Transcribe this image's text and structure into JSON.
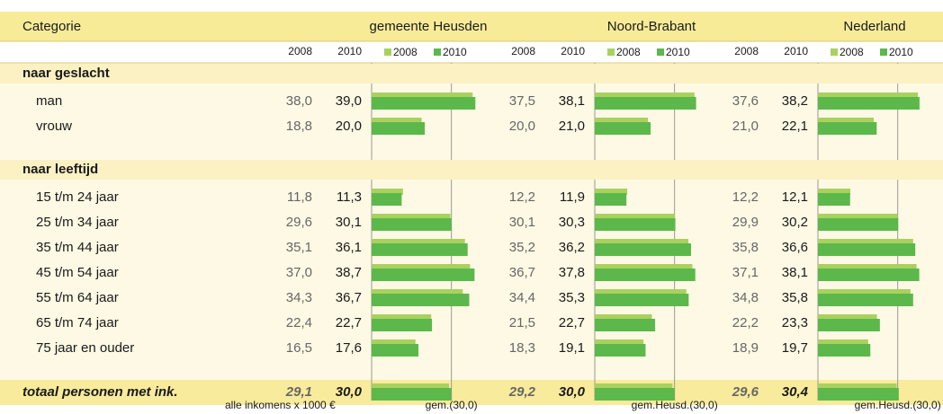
{
  "header": {
    "category": "Categorie",
    "years": [
      "2008",
      "2010"
    ],
    "colors": [
      "#a9d15e",
      "#5cb84b"
    ]
  },
  "bar_scale": {
    "xlim": [
      0,
      45
    ]
  },
  "regions": [
    {
      "name": "gemeente Heusden",
      "reference": 30,
      "reference_label": "gem.(30,0)"
    },
    {
      "name": "Noord-Brabant",
      "reference": 30,
      "reference_label": "gem.Heusd.(30,0)"
    },
    {
      "name": "Nederland",
      "reference": 30,
      "reference_label": "gem.Heusd.(30,0)"
    }
  ],
  "sections": [
    {
      "title": "naar geslacht",
      "rows": [
        {
          "label": "man",
          "values": [
            [
              38.0,
              39.0
            ],
            [
              37.5,
              38.1
            ],
            [
              37.6,
              38.2
            ]
          ],
          "value_labels": [
            [
              "38,0",
              "39,0"
            ],
            [
              "37,5",
              "38,1"
            ],
            [
              "37,6",
              "38,2"
            ]
          ]
        },
        {
          "label": "vrouw",
          "values": [
            [
              18.8,
              20.0
            ],
            [
              20.0,
              21.0
            ],
            [
              21.0,
              22.1
            ]
          ],
          "value_labels": [
            [
              "18,8",
              "20,0"
            ],
            [
              "20,0",
              "21,0"
            ],
            [
              "21,0",
              "22,1"
            ]
          ]
        }
      ]
    },
    {
      "title": "naar leeftijd",
      "rows": [
        {
          "label": "15 t/m 24 jaar",
          "values": [
            [
              11.8,
              11.3
            ],
            [
              12.2,
              11.9
            ],
            [
              12.2,
              12.1
            ]
          ],
          "value_labels": [
            [
              "11,8",
              "11,3"
            ],
            [
              "12,2",
              "11,9"
            ],
            [
              "12,2",
              "12,1"
            ]
          ]
        },
        {
          "label": "25 t/m 34 jaar",
          "values": [
            [
              29.6,
              30.1
            ],
            [
              30.1,
              30.3
            ],
            [
              29.9,
              30.2
            ]
          ],
          "value_labels": [
            [
              "29,6",
              "30,1"
            ],
            [
              "30,1",
              "30,3"
            ],
            [
              "29,9",
              "30,2"
            ]
          ]
        },
        {
          "label": "35 t/m 44 jaar",
          "values": [
            [
              35.1,
              36.1
            ],
            [
              35.2,
              36.2
            ],
            [
              35.8,
              36.6
            ]
          ],
          "value_labels": [
            [
              "35,1",
              "36,1"
            ],
            [
              "35,2",
              "36,2"
            ],
            [
              "35,8",
              "36,6"
            ]
          ]
        },
        {
          "label": "45 t/m 54 jaar",
          "values": [
            [
              37.0,
              38.7
            ],
            [
              36.7,
              37.8
            ],
            [
              37.1,
              38.1
            ]
          ],
          "value_labels": [
            [
              "37,0",
              "38,7"
            ],
            [
              "36,7",
              "37,8"
            ],
            [
              "37,1",
              "38,1"
            ]
          ]
        },
        {
          "label": "55 t/m 64 jaar",
          "values": [
            [
              34.3,
              36.7
            ],
            [
              34.4,
              35.3
            ],
            [
              34.8,
              35.8
            ]
          ],
          "value_labels": [
            [
              "34,3",
              "36,7"
            ],
            [
              "34,4",
              "35,3"
            ],
            [
              "34,8",
              "35,8"
            ]
          ]
        },
        {
          "label": "65 t/m 74 jaar",
          "values": [
            [
              22.4,
              22.7
            ],
            [
              21.5,
              22.7
            ],
            [
              22.2,
              23.3
            ]
          ],
          "value_labels": [
            [
              "22,4",
              "22,7"
            ],
            [
              "21,5",
              "22,7"
            ],
            [
              "22,2",
              "23,3"
            ]
          ]
        },
        {
          "label": "75 jaar en ouder",
          "values": [
            [
              16.5,
              17.6
            ],
            [
              18.3,
              19.1
            ],
            [
              18.9,
              19.7
            ]
          ],
          "value_labels": [
            [
              "16,5",
              "17,6"
            ],
            [
              "18,3",
              "19,1"
            ],
            [
              "18,9",
              "19,7"
            ]
          ]
        }
      ]
    }
  ],
  "total": {
    "label": "totaal personen met ink.",
    "values": [
      [
        29.1,
        30.0
      ],
      [
        29.2,
        30.0
      ],
      [
        29.6,
        30.4
      ]
    ],
    "value_labels": [
      [
        "29,1",
        "30,0"
      ],
      [
        "29,2",
        "30,0"
      ],
      [
        "29,6",
        "30,4"
      ]
    ]
  },
  "footnote": "alle inkomens x 1000 €"
}
